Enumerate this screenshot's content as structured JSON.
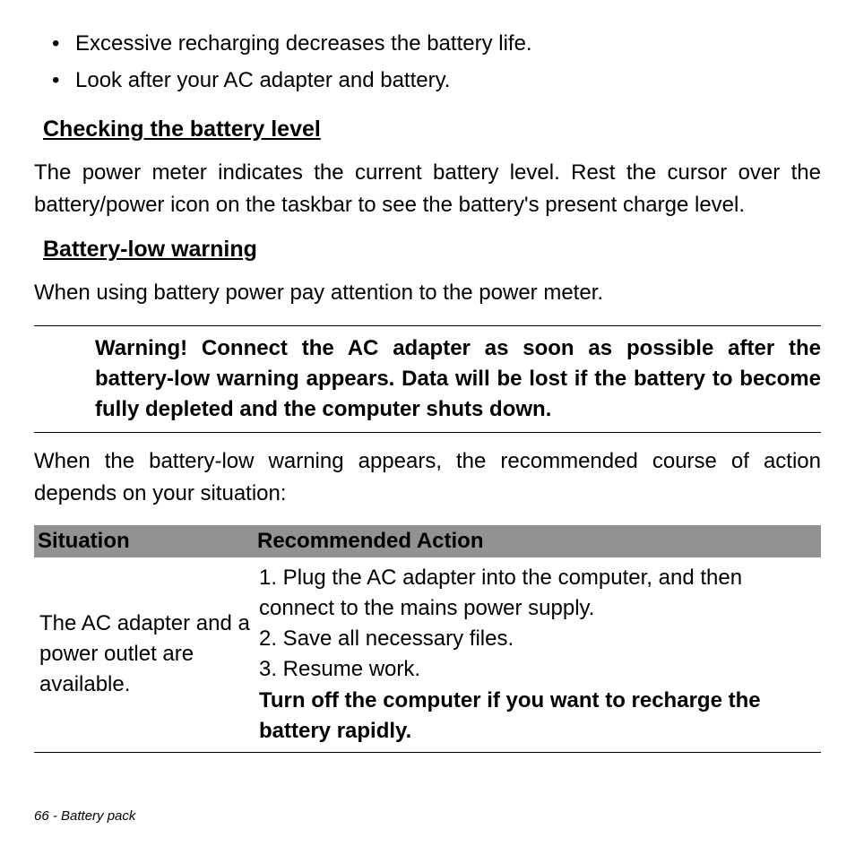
{
  "bullets": [
    "Excessive recharging decreases the battery life.",
    "Look after your AC adapter and battery."
  ],
  "section1": {
    "heading": "Checking the battery level",
    "body": "The power meter indicates the current battery level. Rest the cursor over the battery/power icon on the taskbar to see the battery's present charge level."
  },
  "section2": {
    "heading": "Battery-low warning",
    "body": "When using battery power pay attention to the power meter."
  },
  "warning": "Warning! Connect the AC adapter as soon as possible after the battery-low warning appears. Data will be lost if the battery to become fully depleted and the computer shuts down.",
  "after_warning": "When the battery-low warning appears, the recommended course of action depends on your situation:",
  "table": {
    "header_bg": "#929292",
    "columns": [
      "Situation",
      "Recommended Action"
    ],
    "row": {
      "situation": "The AC adapter and a power outlet are available.",
      "action_lines": [
        "1. Plug the AC adapter into the computer, and then connect to the mains power supply.",
        "2. Save all necessary files.",
        "3. Resume work."
      ],
      "action_bold": "Turn off the computer if you want to recharge the battery rapidly."
    }
  },
  "footer": "66 - Battery pack"
}
